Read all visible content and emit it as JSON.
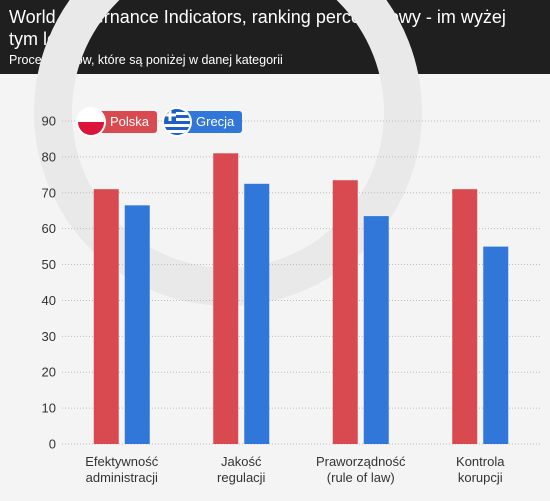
{
  "title": "World Governance Indicators, ranking percentylowy - im wyżej tym lepiej",
  "subtitle": "Procent krajów, które są poniżej w danej kategorii",
  "colors": {
    "polska": "#d94a50",
    "grecja": "#3177d9",
    "greece_flag_blue": "#1e5fc4"
  },
  "chart_data": {
    "type": "bar",
    "title": "World Governance Indicators, ranking percentylowy - im wyżej tym lepiej",
    "subtitle": "Procent krajów, które są poniżej w danej kategorii",
    "categories": [
      "Efektywność administracji",
      "Jakość regulacji",
      "Praworządność (rule of law)",
      "Kontrola korupcji"
    ],
    "category_lines": [
      [
        "Efektywność",
        "administracji"
      ],
      [
        "Jakość",
        "regulacji"
      ],
      [
        "Praworządność",
        "(rule of law)"
      ],
      [
        "Kontrola",
        "korupcji"
      ]
    ],
    "series": [
      {
        "name": "Polska",
        "values": [
          71,
          81,
          73.5,
          71
        ]
      },
      {
        "name": "Grecja",
        "values": [
          66.5,
          72.5,
          63.5,
          55
        ]
      }
    ],
    "ylim": [
      0,
      90
    ],
    "yticks": [
      0,
      10,
      20,
      30,
      40,
      50,
      60,
      70,
      80,
      90
    ],
    "grid": true,
    "legend": "top-left"
  }
}
